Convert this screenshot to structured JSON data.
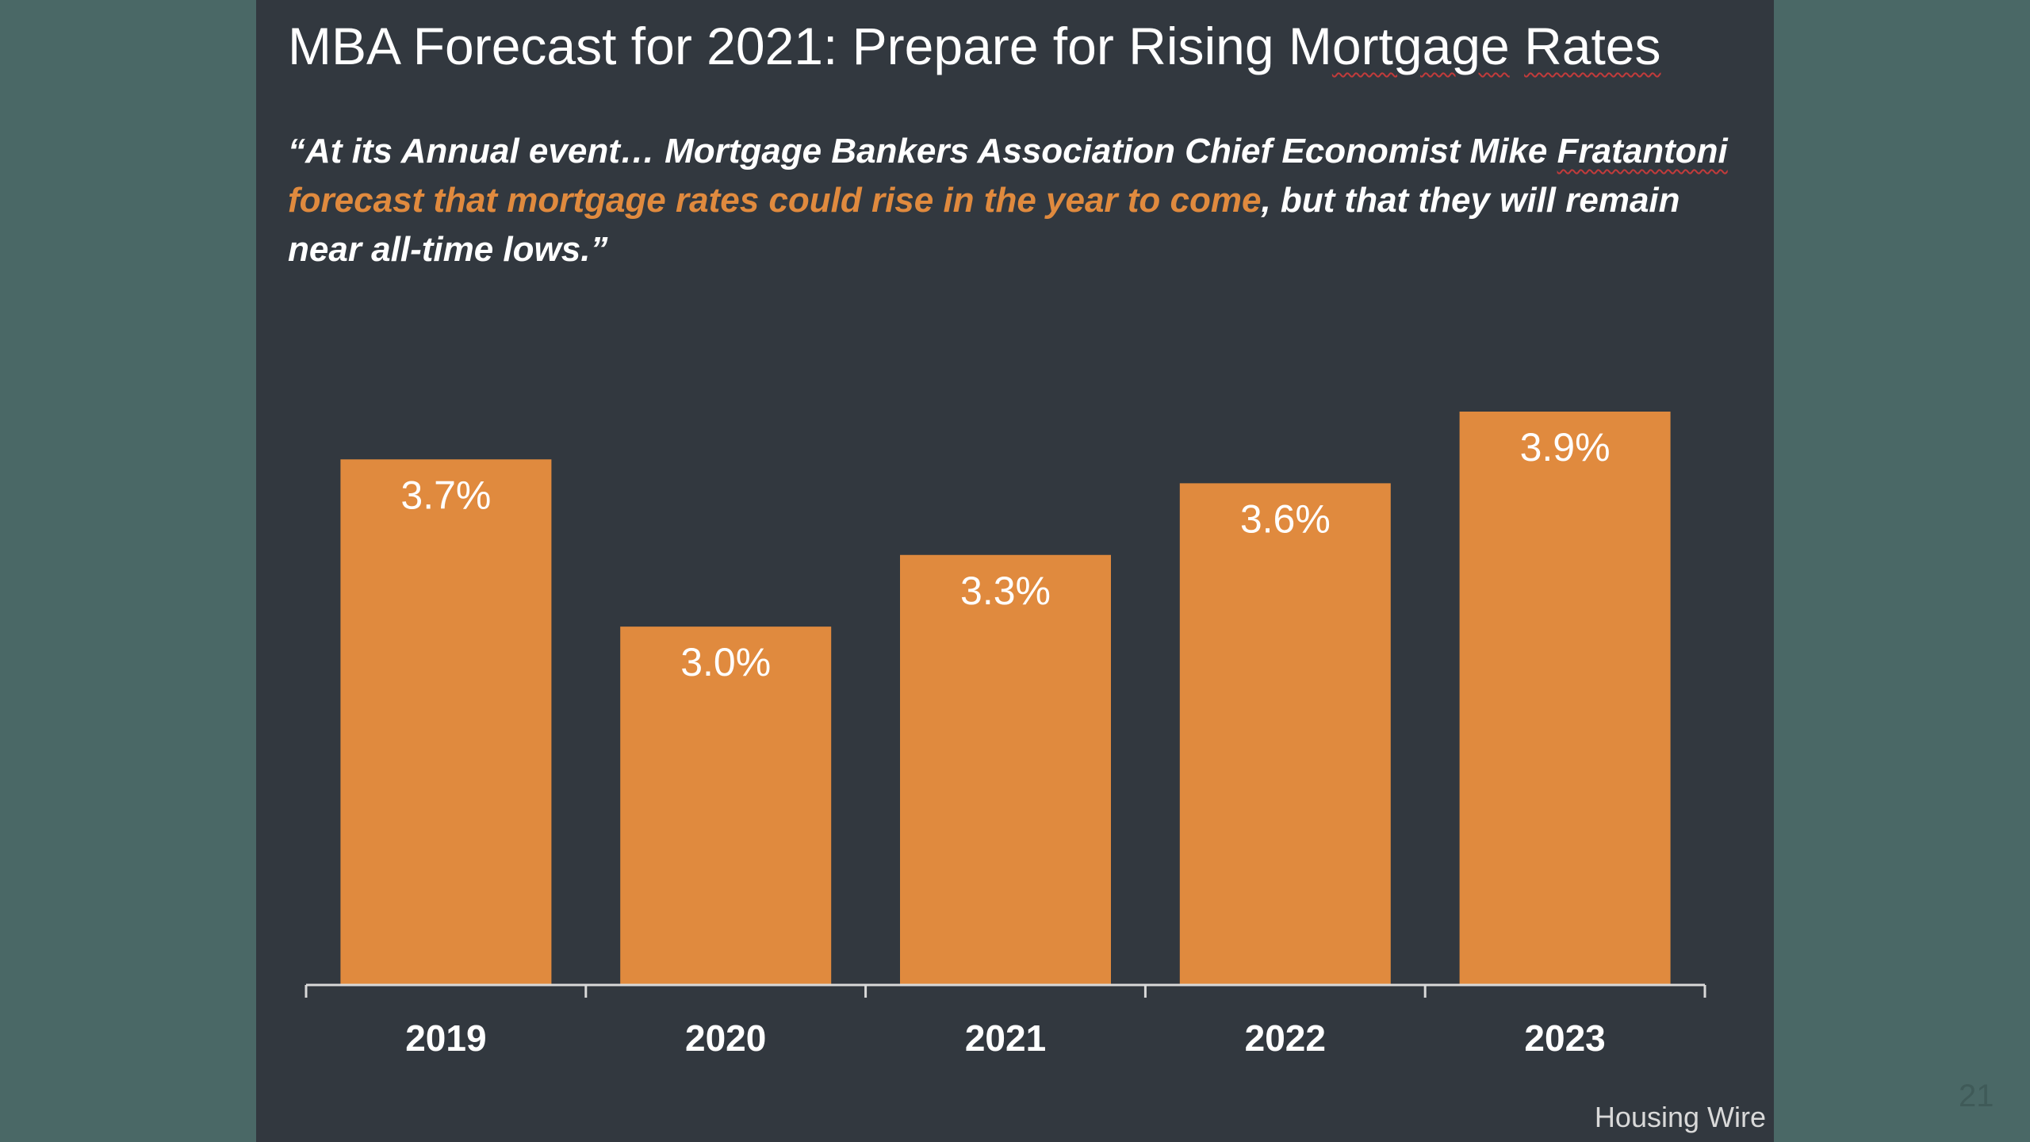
{
  "slide": {
    "title_main": "MBA Forecast for 2021: Prepare for Rising M",
    "title_underlined": "ortgage",
    "title_mid": " ",
    "title_underlined2": "Rates",
    "quote_part1": "“At its Annual event… Mortgage Bankers Association Chief Economist Mike ",
    "quote_name": "Fratantoni",
    "quote_highlight": "forecast that mortgage rates could rise in the year to come",
    "quote_part2": ", but that they will remain near all-time lows.”",
    "source": "Housing Wire",
    "page_number": "21"
  },
  "colors": {
    "background": "#4a6866",
    "slide": "#32383f",
    "bar": "#e08a3e",
    "text": "#ffffff",
    "highlight": "#e08a3e"
  },
  "chart_data": {
    "type": "bar",
    "categories": [
      "2019",
      "2020",
      "2021",
      "2022",
      "2023"
    ],
    "values": [
      3.7,
      3.0,
      3.3,
      3.6,
      3.9
    ],
    "data_labels": [
      "3.7%",
      "3.0%",
      "3.3%",
      "3.6%",
      "3.9%"
    ],
    "title": "",
    "xlabel": "",
    "ylabel": "",
    "ylim": [
      1.5,
      3.9
    ],
    "grid": false,
    "legend": "none"
  }
}
